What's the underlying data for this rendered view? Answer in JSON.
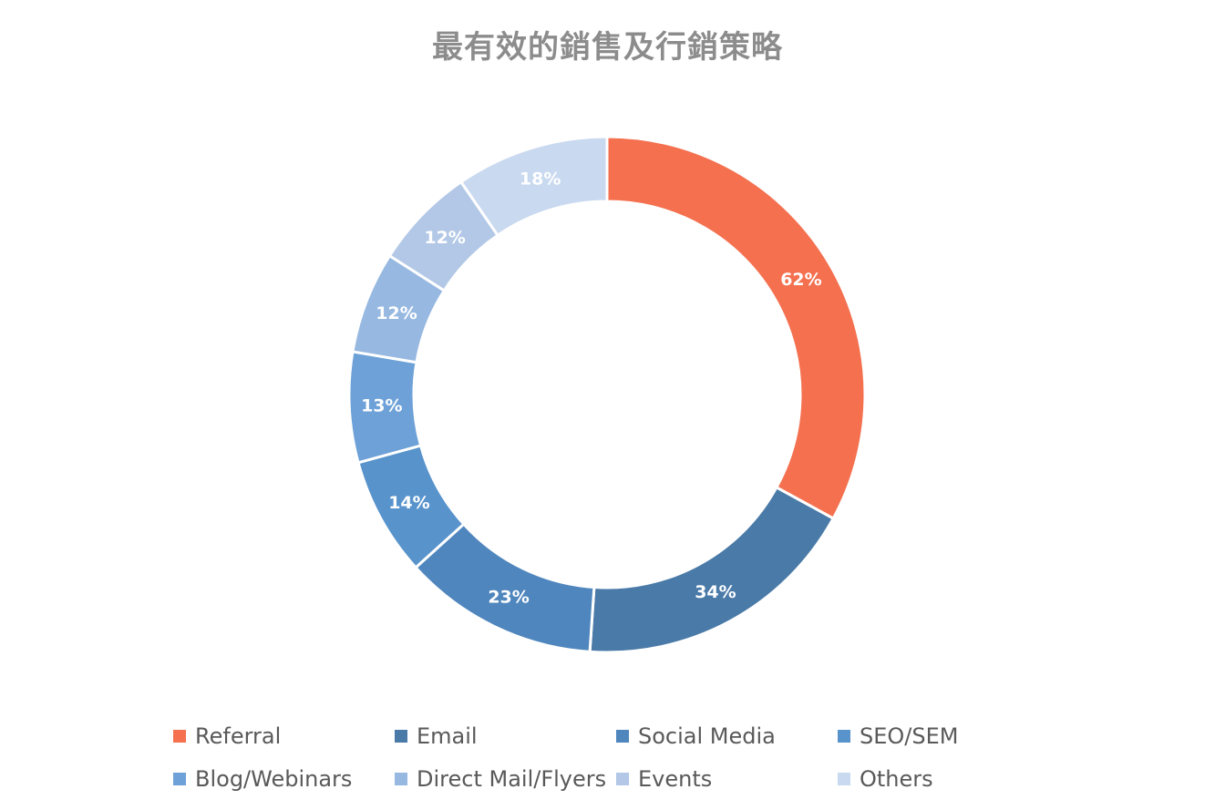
{
  "chart_data": {
    "type": "pie",
    "variant": "donut",
    "title": "最有效的銷售及行銷策略",
    "categories": [
      "Referral",
      "Email",
      "Social Media",
      "SEO/SEM",
      "Blog/Webinars",
      "Direct Mail/Flyers",
      "Events",
      "Others"
    ],
    "values": [
      62,
      34,
      23,
      14,
      13,
      12,
      12,
      18
    ],
    "labels": [
      "62%",
      "34%",
      "23%",
      "14%",
      "13%",
      "12%",
      "12%",
      "18%"
    ],
    "colors": [
      "#f4704f",
      "#4a7aa8",
      "#4f86bd",
      "#5893cc",
      "#6da1d7",
      "#97b8e0",
      "#b2c8e6",
      "#c9d9ef"
    ],
    "legend_position": "bottom"
  }
}
